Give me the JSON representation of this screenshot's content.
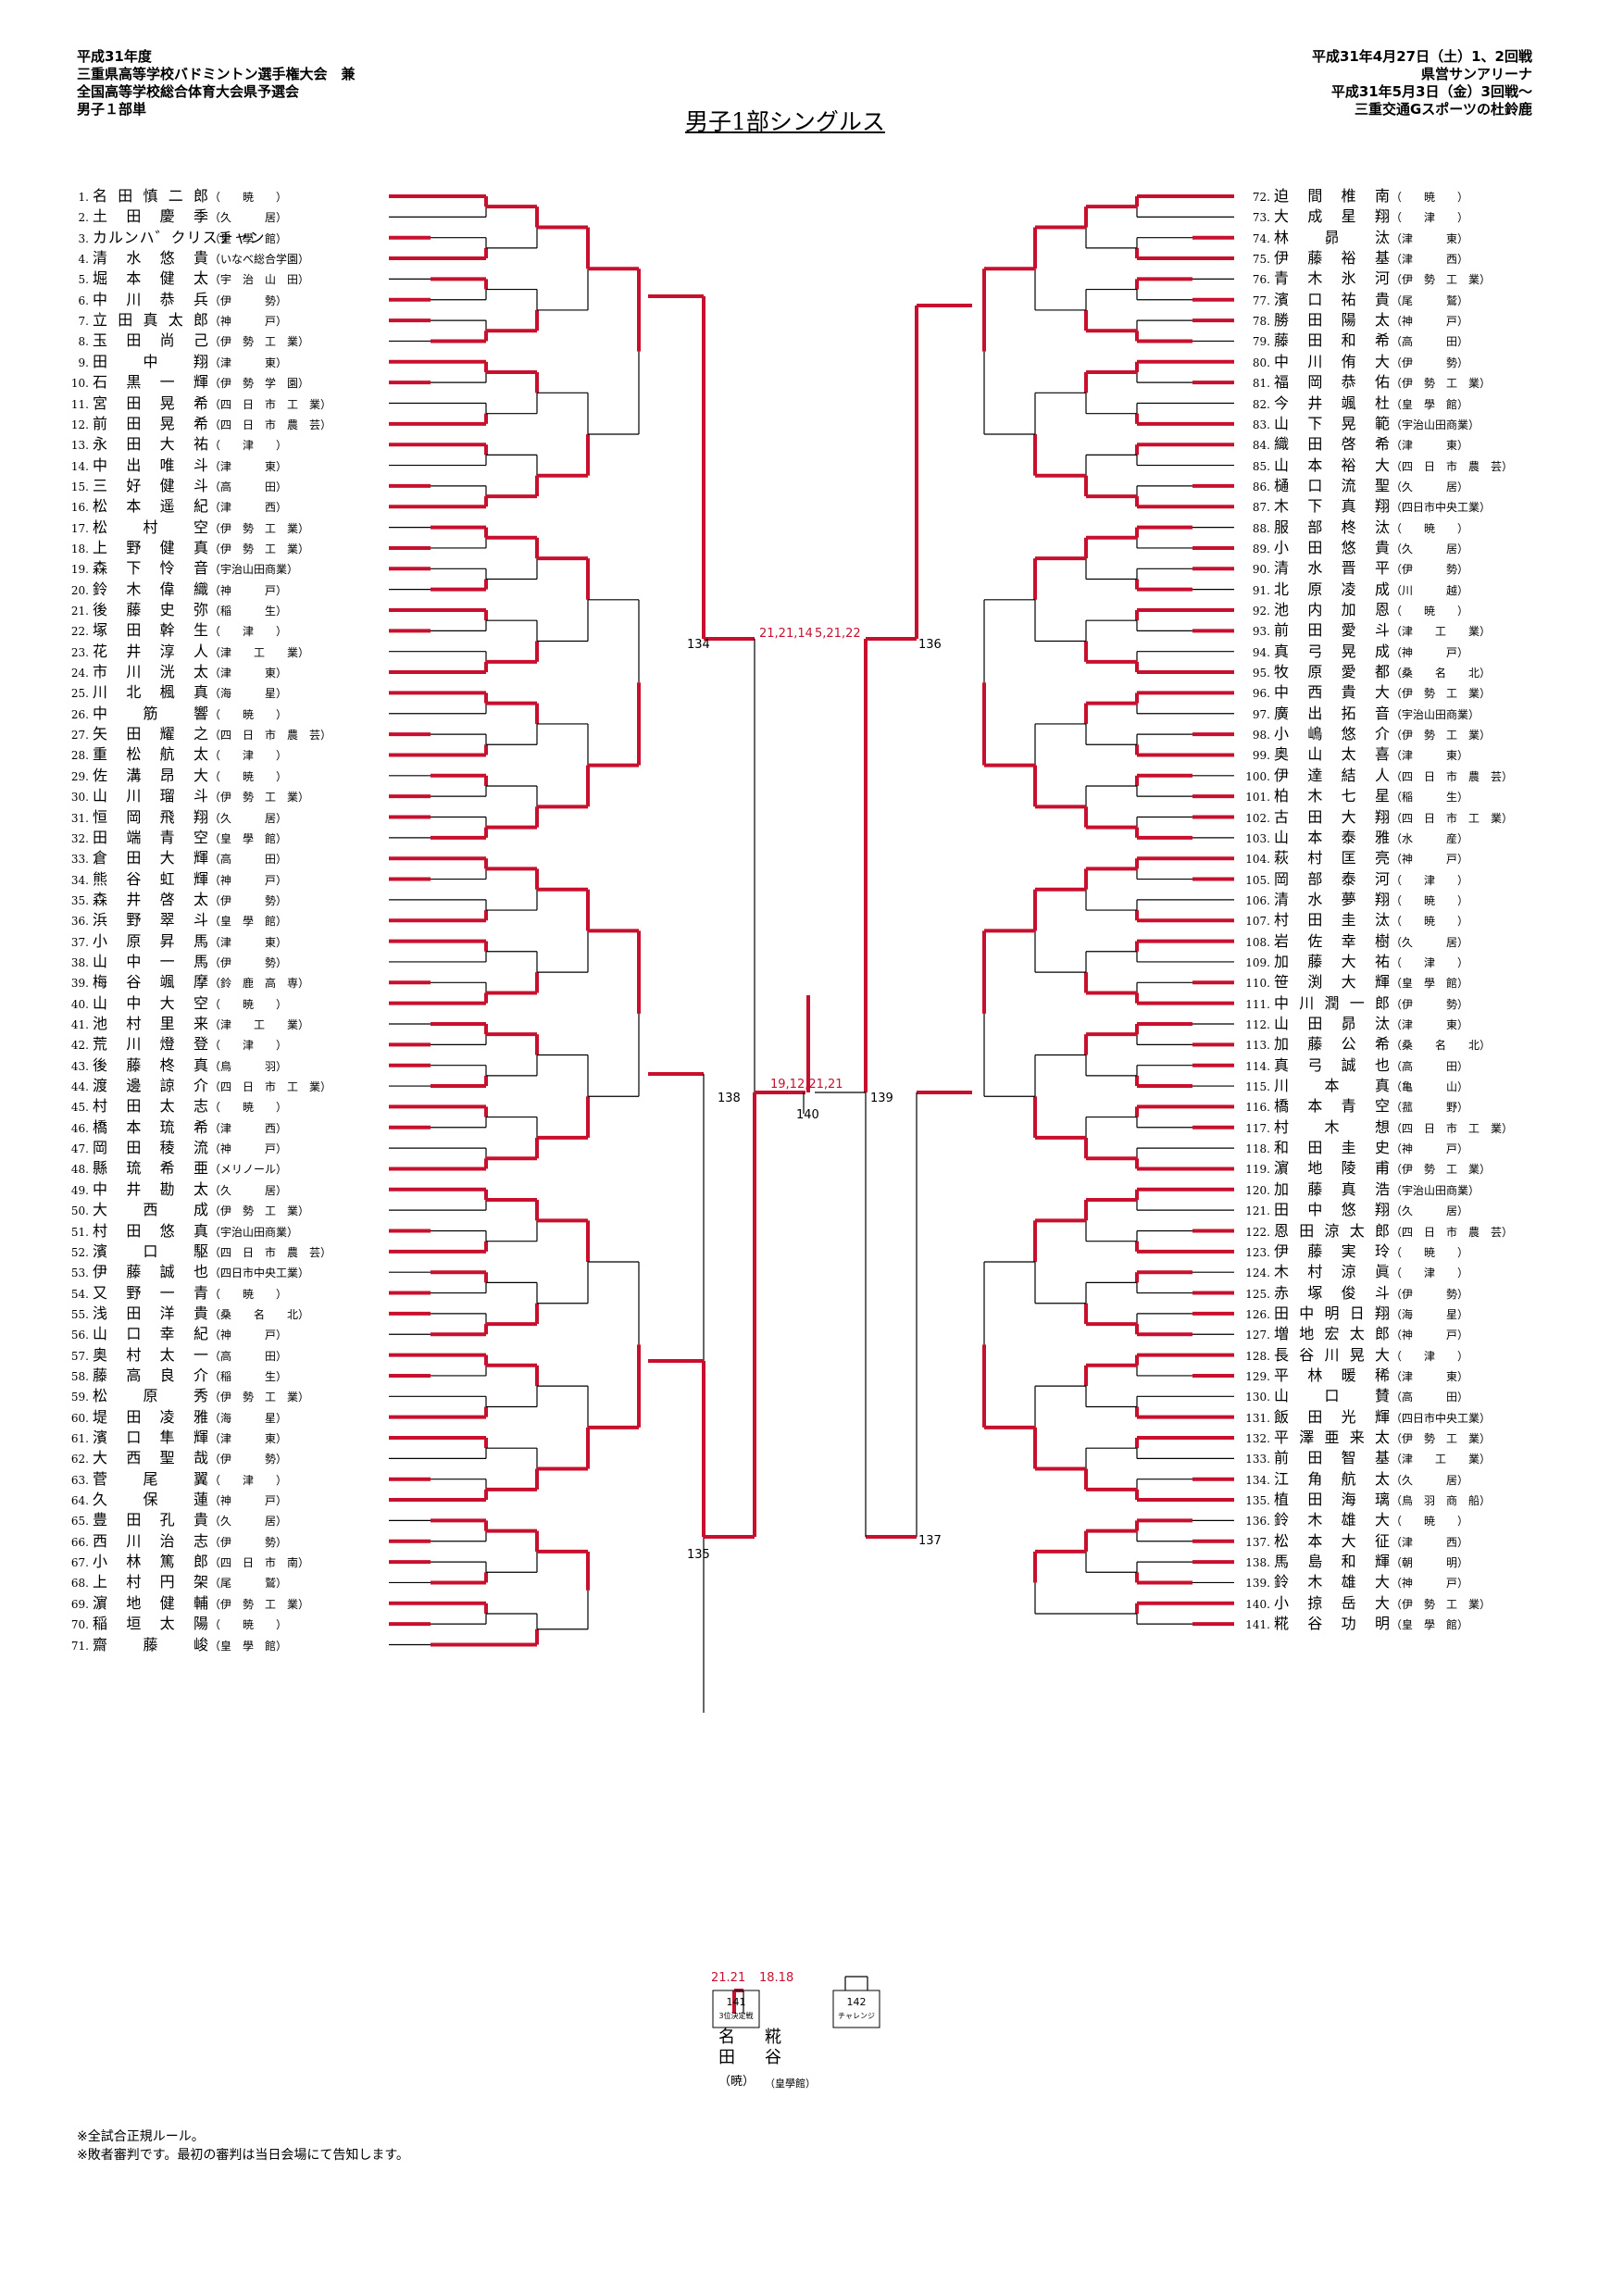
{
  "header": {
    "left": [
      "平成31年度",
      "三重県高等学校バドミントン選手権大会　兼",
      "全国高等学校総合体育大会県予選会",
      "男子１部単"
    ],
    "right": [
      "平成31年4月27日（土）1、2回戦",
      "県営サンアリーナ",
      "平成31年5月3日（金）3回戦～",
      "三重交通Gスポーツの杜鈴鹿"
    ]
  },
  "title": "男子1部シングルス",
  "notes": [
    "※全試合正規ルール。",
    "※敗者審判です。最初の審判は当日会場にて告知します。"
  ],
  "left_players": [
    {
      "num": "1.",
      "name": "名田慎二郎",
      "school": "（　　暁　　）"
    },
    {
      "num": "2.",
      "name": "土田慶季",
      "school": "（久　　　居）"
    },
    {
      "num": "3.",
      "name": "カルンハ゛クリスチャン",
      "school": "（皇　學　館）"
    },
    {
      "num": "4.",
      "name": "清水悠貴",
      "school": "（いなべ総合学園）"
    },
    {
      "num": "5.",
      "name": "堀本健太",
      "school": "（宇　治　山　田）"
    },
    {
      "num": "6.",
      "name": "中川恭兵",
      "school": "（伊　　　勢）"
    },
    {
      "num": "7.",
      "name": "立田真太郎",
      "school": "（神　　　戸）"
    },
    {
      "num": "8.",
      "name": "玉田尚己",
      "school": "（伊　勢　工　業）"
    },
    {
      "num": "9.",
      "name": "田中翔",
      "school": "（津　　　東）"
    },
    {
      "num": "10.",
      "name": "石黒一輝",
      "school": "（伊　勢　学　園）"
    },
    {
      "num": "11.",
      "name": "宮田晃希",
      "school": "（四　日　市　工　業）"
    },
    {
      "num": "12.",
      "name": "前田晃希",
      "school": "（四　日　市　農　芸）"
    },
    {
      "num": "13.",
      "name": "永田大祐",
      "school": "（　　津　　）"
    },
    {
      "num": "14.",
      "name": "中出唯斗",
      "school": "（津　　　東）"
    },
    {
      "num": "15.",
      "name": "三好健斗",
      "school": "（高　　　田）"
    },
    {
      "num": "16.",
      "name": "松本遥紀",
      "school": "（津　　　西）"
    },
    {
      "num": "17.",
      "name": "松村空",
      "school": "（伊　勢　工　業）"
    },
    {
      "num": "18.",
      "name": "上野健真",
      "school": "（伊　勢　工　業）"
    },
    {
      "num": "19.",
      "name": "森下怜音",
      "school": "（宇治山田商業）"
    },
    {
      "num": "20.",
      "name": "鈴木偉織",
      "school": "（神　　　戸）"
    },
    {
      "num": "21.",
      "name": "後藤史弥",
      "school": "（稲　　　生）"
    },
    {
      "num": "22.",
      "name": "塚田幹生",
      "school": "（　　津　　）"
    },
    {
      "num": "23.",
      "name": "花井淳人",
      "school": "（津　　工　　業）"
    },
    {
      "num": "24.",
      "name": "市川洸太",
      "school": "（津　　　東）"
    },
    {
      "num": "25.",
      "name": "川北楓真",
      "school": "（海　　　星）"
    },
    {
      "num": "26.",
      "name": "中筋響",
      "school": "（　　暁　　）"
    },
    {
      "num": "27.",
      "name": "矢田耀之",
      "school": "（四　日　市　農　芸）"
    },
    {
      "num": "28.",
      "name": "重松航太",
      "school": "（　　津　　）"
    },
    {
      "num": "29.",
      "name": "佐溝昂大",
      "school": "（　　暁　　）"
    },
    {
      "num": "30.",
      "name": "山川瑠斗",
      "school": "（伊　勢　工　業）"
    },
    {
      "num": "31.",
      "name": "恒岡飛翔",
      "school": "（久　　　居）"
    },
    {
      "num": "32.",
      "name": "田端青空",
      "school": "（皇　學　館）"
    },
    {
      "num": "33.",
      "name": "倉田大輝",
      "school": "（高　　　田）"
    },
    {
      "num": "34.",
      "name": "熊谷虹輝",
      "school": "（神　　　戸）"
    },
    {
      "num": "35.",
      "name": "森井啓太",
      "school": "（伊　　　勢）"
    },
    {
      "num": "36.",
      "name": "浜野翠斗",
      "school": "（皇　學　館）"
    },
    {
      "num": "37.",
      "name": "小原昇馬",
      "school": "（津　　　東）"
    },
    {
      "num": "38.",
      "name": "山中一馬",
      "school": "（伊　　　勢）"
    },
    {
      "num": "39.",
      "name": "梅谷颯摩",
      "school": "（鈴　鹿　高　専）"
    },
    {
      "num": "40.",
      "name": "山中大空",
      "school": "（　　暁　　）"
    },
    {
      "num": "41.",
      "name": "池村里来",
      "school": "（津　　工　　業）"
    },
    {
      "num": "42.",
      "name": "荒川燈登",
      "school": "（　　津　　）"
    },
    {
      "num": "43.",
      "name": "後藤柊真",
      "school": "（鳥　　　羽）"
    },
    {
      "num": "44.",
      "name": "渡邊諒介",
      "school": "（四　日　市　工　業）"
    },
    {
      "num": "45.",
      "name": "村田太志",
      "school": "（　　暁　　）"
    },
    {
      "num": "46.",
      "name": "橋本琉希",
      "school": "（津　　　西）"
    },
    {
      "num": "47.",
      "name": "岡田稜流",
      "school": "（神　　　戸）"
    },
    {
      "num": "48.",
      "name": "縣琉希亜",
      "school": "（メリノール）"
    },
    {
      "num": "49.",
      "name": "中井勘太",
      "school": "（久　　　居）"
    },
    {
      "num": "50.",
      "name": "大西成",
      "school": "（伊　勢　工　業）"
    },
    {
      "num": "51.",
      "name": "村田悠真",
      "school": "（宇治山田商業）"
    },
    {
      "num": "52.",
      "name": "濱口駆",
      "school": "（四　日　市　農　芸）"
    },
    {
      "num": "53.",
      "name": "伊藤誠也",
      "school": "（四日市中央工業）"
    },
    {
      "num": "54.",
      "name": "又野一青",
      "school": "（　　暁　　）"
    },
    {
      "num": "55.",
      "name": "浅田洋貴",
      "school": "（桑　　名　　北）"
    },
    {
      "num": "56.",
      "name": "山口幸紀",
      "school": "（神　　　戸）"
    },
    {
      "num": "57.",
      "name": "奥村太一",
      "school": "（高　　　田）"
    },
    {
      "num": "58.",
      "name": "藤高良介",
      "school": "（稲　　　生）"
    },
    {
      "num": "59.",
      "name": "松原秀",
      "school": "（伊　勢　工　業）"
    },
    {
      "num": "60.",
      "name": "堤田凌雅",
      "school": "（海　　　星）"
    },
    {
      "num": "61.",
      "name": "濱口隼輝",
      "school": "（津　　　東）"
    },
    {
      "num": "62.",
      "name": "大西聖哉",
      "school": "（伊　　　勢）"
    },
    {
      "num": "63.",
      "name": "菅尾翼",
      "school": "（　　津　　）"
    },
    {
      "num": "64.",
      "name": "久保蓮",
      "school": "（神　　　戸）"
    },
    {
      "num": "65.",
      "name": "豊田孔貴",
      "school": "（久　　　居）"
    },
    {
      "num": "66.",
      "name": "西川治志",
      "school": "（伊　　　勢）"
    },
    {
      "num": "67.",
      "name": "小林篤郎",
      "school": "（四　日　市　南）"
    },
    {
      "num": "68.",
      "name": "上村円架",
      "school": "（尾　　　鷲）"
    },
    {
      "num": "69.",
      "name": "濵地健輔",
      "school": "（伊　勢　工　業）"
    },
    {
      "num": "70.",
      "name": "稲垣太陽",
      "school": "（　　暁　　）"
    },
    {
      "num": "71.",
      "name": "齋藤峻",
      "school": "（皇　學　館）"
    }
  ],
  "right_players": [
    {
      "num": "72.",
      "name": "迫間椎南",
      "school": "（　　暁　　）"
    },
    {
      "num": "73.",
      "name": "大成星翔",
      "school": "（　　津　　）"
    },
    {
      "num": "74.",
      "name": "林昴汰",
      "school": "（津　　　東）"
    },
    {
      "num": "75.",
      "name": "伊藤裕基",
      "school": "（津　　　西）"
    },
    {
      "num": "76.",
      "name": "青木氷河",
      "school": "（伊　勢　工　業）"
    },
    {
      "num": "77.",
      "name": "濱口祐貴",
      "school": "（尾　　　鷲）"
    },
    {
      "num": "78.",
      "name": "勝田陽太",
      "school": "（神　　　戸）"
    },
    {
      "num": "79.",
      "name": "藤田和希",
      "school": "（高　　　田）"
    },
    {
      "num": "80.",
      "name": "中川侑大",
      "school": "（伊　　　勢）"
    },
    {
      "num": "81.",
      "name": "福岡恭佑",
      "school": "（伊　勢　工　業）"
    },
    {
      "num": "82.",
      "name": "今井颯杜",
      "school": "（皇　學　館）"
    },
    {
      "num": "83.",
      "name": "山下晃範",
      "school": "（宇治山田商業）"
    },
    {
      "num": "84.",
      "name": "織田啓希",
      "school": "（津　　　東）"
    },
    {
      "num": "85.",
      "name": "山本裕大",
      "school": "（四　日　市　農　芸）"
    },
    {
      "num": "86.",
      "name": "樋口流聖",
      "school": "（久　　　居）"
    },
    {
      "num": "87.",
      "name": "木下真翔",
      "school": "（四日市中央工業）"
    },
    {
      "num": "88.",
      "name": "服部柊汰",
      "school": "（　　暁　　）"
    },
    {
      "num": "89.",
      "name": "小田悠貴",
      "school": "（久　　　居）"
    },
    {
      "num": "90.",
      "name": "清水晋平",
      "school": "（伊　　　勢）"
    },
    {
      "num": "91.",
      "name": "北原凌成",
      "school": "（川　　　越）"
    },
    {
      "num": "92.",
      "name": "池内加恩",
      "school": "（　　暁　　）"
    },
    {
      "num": "93.",
      "name": "前田愛斗",
      "school": "（津　　工　　業）"
    },
    {
      "num": "94.",
      "name": "真弓晃成",
      "school": "（神　　　戸）"
    },
    {
      "num": "95.",
      "name": "牧原愛都",
      "school": "（桑　　名　　北）"
    },
    {
      "num": "96.",
      "name": "中西貴大",
      "school": "（伊　勢　工　業）"
    },
    {
      "num": "97.",
      "name": "廣出拓音",
      "school": "（宇治山田商業）"
    },
    {
      "num": "98.",
      "name": "小嶋悠介",
      "school": "（伊　勢　工　業）"
    },
    {
      "num": "99.",
      "name": "奥山太喜",
      "school": "（津　　　東）"
    },
    {
      "num": "100.",
      "name": "伊達結人",
      "school": "（四　日　市　農　芸）"
    },
    {
      "num": "101.",
      "name": "柏木七星",
      "school": "（稲　　　生）"
    },
    {
      "num": "102.",
      "name": "古田大翔",
      "school": "（四　日　市　工　業）"
    },
    {
      "num": "103.",
      "name": "山本泰雅",
      "school": "（水　　　産）"
    },
    {
      "num": "104.",
      "name": "萩村匡亮",
      "school": "（神　　　戸）"
    },
    {
      "num": "105.",
      "name": "岡部泰河",
      "school": "（　　津　　）"
    },
    {
      "num": "106.",
      "name": "清水夢翔",
      "school": "（　　暁　　）"
    },
    {
      "num": "107.",
      "name": "村田圭汰",
      "school": "（　　暁　　）"
    },
    {
      "num": "108.",
      "name": "岩佐幸樹",
      "school": "（久　　　居）"
    },
    {
      "num": "109.",
      "name": "加藤大祐",
      "school": "（　　津　　）"
    },
    {
      "num": "110.",
      "name": "笹渕大輝",
      "school": "（皇　學　館）"
    },
    {
      "num": "111.",
      "name": "中川潤一郎",
      "school": "（伊　　　勢）"
    },
    {
      "num": "112.",
      "name": "山田昴汰",
      "school": "（津　　　東）"
    },
    {
      "num": "113.",
      "name": "加藤公希",
      "school": "（桑　　名　　北）"
    },
    {
      "num": "114.",
      "name": "真弓誠也",
      "school": "（高　　　田）"
    },
    {
      "num": "115.",
      "name": "川本真",
      "school": "（亀　　　山）"
    },
    {
      "num": "116.",
      "name": "橋本青空",
      "school": "（菰　　　野）"
    },
    {
      "num": "117.",
      "name": "村木想",
      "school": "（四　日　市　工　業）"
    },
    {
      "num": "118.",
      "name": "和田圭史",
      "school": "（神　　　戸）"
    },
    {
      "num": "119.",
      "name": "濵地陵甫",
      "school": "（伊　勢　工　業）"
    },
    {
      "num": "120.",
      "name": "加藤真浩",
      "school": "（宇治山田商業）"
    },
    {
      "num": "121.",
      "name": "田中悠翔",
      "school": "（久　　　居）"
    },
    {
      "num": "122.",
      "name": "恩田涼太郎",
      "school": "（四　日　市　農　芸）"
    },
    {
      "num": "123.",
      "name": "伊藤実玲",
      "school": "（　　暁　　）"
    },
    {
      "num": "124.",
      "name": "木村涼眞",
      "school": "（　　津　　）"
    },
    {
      "num": "125.",
      "name": "赤塚俊斗",
      "school": "（伊　　　勢）"
    },
    {
      "num": "126.",
      "name": "田中明日翔",
      "school": "（海　　　星）"
    },
    {
      "num": "127.",
      "name": "増地宏太郎",
      "school": "（神　　　戸）"
    },
    {
      "num": "128.",
      "name": "長谷川晃大",
      "school": "（　　津　　）"
    },
    {
      "num": "129.",
      "name": "平林暖稀",
      "school": "（津　　　東）"
    },
    {
      "num": "130.",
      "name": "山口賛",
      "school": "（高　　　田）"
    },
    {
      "num": "131.",
      "name": "飯田光輝",
      "school": "（四日市中央工業）"
    },
    {
      "num": "132.",
      "name": "平澤亜来太",
      "school": "（伊　勢　工　業）"
    },
    {
      "num": "133.",
      "name": "前田智基",
      "school": "（津　　工　　業）"
    },
    {
      "num": "134.",
      "name": "江角航太",
      "school": "（久　　　居）"
    },
    {
      "num": "135.",
      "name": "植田海璃",
      "school": "（鳥　羽　商　船）"
    },
    {
      "num": "136.",
      "name": "鈴木雄大",
      "school": "（　　暁　　）"
    },
    {
      "num": "137.",
      "name": "松本大征",
      "school": "（津　　　西）"
    },
    {
      "num": "138.",
      "name": "馬島和輝",
      "school": "（朝　　　明）"
    },
    {
      "num": "139.",
      "name": "鈴木雄大",
      "school": "（神　　　戸）"
    },
    {
      "num": "140.",
      "name": "小掠岳大",
      "school": "（伊　勢　工　業）"
    },
    {
      "num": "141.",
      "name": "糀谷功明",
      "school": "（皇　學　館）"
    }
  ],
  "match_numbers": [
    "134",
    "135",
    "136",
    "137",
    "138",
    "139",
    "140",
    "141",
    "142"
  ],
  "final_scores": {
    "semi_left": "21,21,14",
    "semi_right": "5,21,22",
    "final": "19,12,21,21",
    "third_left": "21.21",
    "third_right": "18.18"
  },
  "third_place": {
    "match": "141",
    "label": "3位決定戦",
    "challenge_match": "142",
    "challenge_label": "チャレンジ"
  },
  "winners": {
    "left_name": "名田",
    "left_school": "（暁）",
    "right_name": "糀谷",
    "right_school": "（皇學館）"
  },
  "colors": {
    "win_line": "#c8102e",
    "lose_line": "#000000"
  }
}
